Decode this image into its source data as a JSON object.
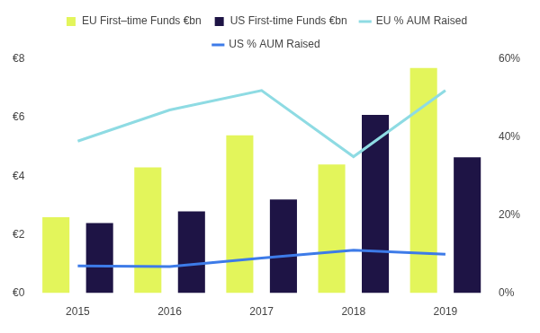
{
  "chart_data": {
    "type": "bar",
    "categories": [
      "2015",
      "2016",
      "2017",
      "2018",
      "2019"
    ],
    "series": [
      {
        "name": "EU First–time Funds €bn",
        "type": "bar",
        "color": "#e3f55b",
        "values": [
          2.6,
          4.3,
          5.4,
          4.4,
          7.7
        ]
      },
      {
        "name": "US First-time Funds €bn",
        "type": "bar",
        "color": "#1e1445",
        "values": [
          2.4,
          2.8,
          3.2,
          6.1,
          4.65
        ]
      },
      {
        "name": "EU % AUM Raised",
        "type": "line",
        "axis": "y2",
        "color": "#8edbe3",
        "marker": "none",
        "line_style": "solid",
        "values": [
          39,
          47,
          52,
          35,
          52
        ]
      },
      {
        "name": "US % AUM Raised",
        "type": "line",
        "axis": "y2",
        "color": "#3d7be8",
        "marker": "none",
        "line_style": "solid",
        "values": [
          7,
          6.8,
          9,
          11,
          10
        ]
      }
    ],
    "ylim": [
      0,
      8
    ],
    "yticks": [
      {
        "value": 0,
        "label": "€0"
      },
      {
        "value": 2,
        "label": "€2"
      },
      {
        "value": 4,
        "label": "€4"
      },
      {
        "value": 6,
        "label": "€6"
      },
      {
        "value": 8,
        "label": "€8"
      }
    ],
    "y2lim": [
      0,
      60
    ],
    "y2ticks": [
      {
        "value": 0,
        "label": "0%"
      },
      {
        "value": 20,
        "label": "20%"
      },
      {
        "value": 40,
        "label": "40%"
      },
      {
        "value": 60,
        "label": "60%"
      }
    ],
    "grid": false,
    "legend": "top"
  }
}
